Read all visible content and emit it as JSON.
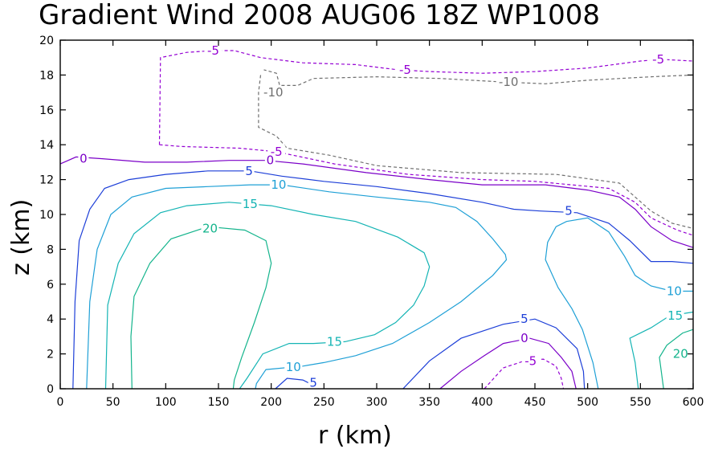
{
  "chart_data": {
    "type": "contour",
    "title": "Gradient Wind 2008 AUG06 18Z  WP1008",
    "xlabel": "r (km)",
    "ylabel": "z (km)",
    "xlim": [
      0,
      600
    ],
    "ylim": [
      0,
      20
    ],
    "x_ticks": [
      "0",
      "50",
      "100",
      "150",
      "200",
      "250",
      "300",
      "350",
      "400",
      "450",
      "500",
      "550",
      "600"
    ],
    "y_ticks": [
      "0",
      "2",
      "4",
      "6",
      "8",
      "10",
      "12",
      "14",
      "16",
      "18",
      "20"
    ],
    "colors": {
      "m10": "#6f6f6f",
      "m5": "#9400d3",
      "c0": "#7b00c8",
      "c5": "#1d3fd8",
      "c10": "#1fa0d6",
      "c15": "#14b4b4",
      "c20": "#14b48c"
    },
    "contours": [
      {
        "level": -10,
        "color_key": "m10",
        "dashed": true,
        "segments": [
          [
            [
              190,
              18
            ],
            [
              188,
              17
            ],
            [
              188,
              15
            ],
            [
              205,
              14.5
            ],
            [
              215,
              13.8
            ],
            [
              255,
              13.4
            ],
            [
              300,
              12.8
            ],
            [
              380,
              12.4
            ],
            [
              470,
              12.3
            ],
            [
              530,
              11.8
            ],
            [
              560,
              10.2
            ],
            [
              580,
              9.5
            ],
            [
              600,
              9.2
            ]
          ],
          [
            [
              600,
              18
            ],
            [
              560,
              17.9
            ],
            [
              500,
              17.7
            ],
            [
              460,
              17.5
            ],
            [
              420,
              17.6
            ],
            [
              360,
              17.8
            ],
            [
              300,
              17.9
            ],
            [
              240,
              17.8
            ],
            [
              225,
              17.4
            ],
            [
              208,
              17.4
            ],
            [
              205,
              18.1
            ],
            [
              193,
              18.3
            ]
          ]
        ],
        "labels": [
          {
            "x": 202,
            "y": 17.0,
            "text": "-10"
          },
          {
            "x": 425,
            "y": 17.6,
            "text": "-10"
          }
        ]
      },
      {
        "level": -5,
        "color_key": "m5",
        "dashed": true,
        "segments": [
          [
            [
              94,
              14
            ],
            [
              95,
              19
            ],
            [
              120,
              19.3
            ],
            [
              145,
              19.4
            ],
            [
              165,
              19.4
            ],
            [
              190,
              19
            ],
            [
              230,
              18.7
            ],
            [
              280,
              18.6
            ],
            [
              320,
              18.3
            ],
            [
              350,
              18.2
            ],
            [
              400,
              18.1
            ],
            [
              450,
              18.2
            ],
            [
              500,
              18.4
            ],
            [
              550,
              18.8
            ],
            [
              570,
              18.9
            ],
            [
              600,
              18.8
            ]
          ],
          [
            [
              94,
              14
            ],
            [
              115,
              13.9
            ],
            [
              170,
              13.8
            ],
            [
              205,
              13.6
            ],
            [
              260,
              12.9
            ],
            [
              330,
              12.3
            ],
            [
              400,
              12
            ],
            [
              450,
              11.9
            ],
            [
              520,
              11.5
            ],
            [
              545,
              10.7
            ],
            [
              560,
              9.8
            ],
            [
              585,
              9.1
            ],
            [
              600,
              8.8
            ]
          ],
          [
            [
              402,
              0
            ],
            [
              420,
              1.2
            ],
            [
              440,
              1.6
            ],
            [
              458,
              1.7
            ],
            [
              470,
              1.3
            ],
            [
              475,
              0.6
            ],
            [
              477,
              0
            ]
          ]
        ],
        "labels": [
          {
            "x": 145,
            "y": 19.4,
            "text": "-5"
          },
          {
            "x": 327,
            "y": 18.3,
            "text": "-5"
          },
          {
            "x": 567,
            "y": 18.9,
            "text": "-5"
          },
          {
            "x": 205,
            "y": 13.6,
            "text": "-5"
          },
          {
            "x": 446,
            "y": 1.6,
            "text": "-5"
          }
        ]
      },
      {
        "level": 0,
        "color_key": "c0",
        "dashed": false,
        "segments": [
          [
            [
              0,
              12.9
            ],
            [
              15,
              13.3
            ],
            [
              40,
              13.2
            ],
            [
              80,
              13
            ],
            [
              120,
              13
            ],
            [
              160,
              13.1
            ],
            [
              195,
              13.1
            ],
            [
              230,
              12.9
            ],
            [
              290,
              12.4
            ],
            [
              350,
              12.0
            ],
            [
              400,
              11.7
            ],
            [
              460,
              11.7
            ],
            [
              500,
              11.4
            ],
            [
              530,
              11
            ],
            [
              545,
              10.3
            ],
            [
              560,
              9.3
            ],
            [
              580,
              8.5
            ],
            [
              600,
              8.1
            ]
          ],
          [
            [
              360,
              0
            ],
            [
              380,
              1
            ],
            [
              402,
              1.9
            ],
            [
              420,
              2.6
            ],
            [
              445,
              2.9
            ],
            [
              463,
              2.6
            ],
            [
              475,
              1.8
            ],
            [
              485,
              1
            ],
            [
              489,
              0
            ]
          ]
        ],
        "labels": [
          {
            "x": 22,
            "y": 13.2,
            "text": "0"
          },
          {
            "x": 199,
            "y": 13.1,
            "text": "0"
          },
          {
            "x": 440,
            "y": 2.9,
            "text": "0"
          }
        ]
      },
      {
        "level": 5,
        "color_key": "c5",
        "dashed": false,
        "segments": [
          [
            [
              12,
              0
            ],
            [
              14,
              5
            ],
            [
              18,
              8.5
            ],
            [
              28,
              10.3
            ],
            [
              42,
              11.5
            ],
            [
              65,
              12
            ],
            [
              100,
              12.3
            ],
            [
              140,
              12.5
            ],
            [
              180,
              12.5
            ],
            [
              210,
              12.2
            ],
            [
              250,
              11.9
            ],
            [
              300,
              11.6
            ],
            [
              350,
              11.2
            ],
            [
              400,
              10.7
            ],
            [
              430,
              10.3
            ],
            [
              455,
              10.2
            ],
            [
              490,
              10.1
            ],
            [
              520,
              9.5
            ],
            [
              540,
              8.5
            ],
            [
              560,
              7.3
            ],
            [
              580,
              7.3
            ],
            [
              600,
              7.2
            ]
          ],
          [
            [
              204,
              0
            ],
            [
              215,
              0.6
            ],
            [
              230,
              0.5
            ],
            [
              240,
              0.2
            ],
            [
              245,
              0
            ]
          ],
          [
            [
              325,
              0
            ],
            [
              350,
              1.6
            ],
            [
              380,
              2.9
            ],
            [
              420,
              3.7
            ],
            [
              450,
              4
            ],
            [
              470,
              3.5
            ],
            [
              490,
              2.3
            ],
            [
              496,
              1
            ],
            [
              497,
              0
            ]
          ]
        ],
        "labels": [
          {
            "x": 179,
            "y": 12.5,
            "text": "5"
          },
          {
            "x": 482,
            "y": 10.2,
            "text": "5"
          },
          {
            "x": 240,
            "y": 0.35,
            "text": "5"
          },
          {
            "x": 440,
            "y": 4.0,
            "text": "5"
          }
        ]
      },
      {
        "level": 10,
        "color_key": "c10",
        "dashed": false,
        "segments": [
          [
            [
              25,
              0
            ],
            [
              28,
              5
            ],
            [
              35,
              8
            ],
            [
              48,
              10
            ],
            [
              68,
              11.0
            ],
            [
              100,
              11.5
            ],
            [
              140,
              11.6
            ],
            [
              180,
              11.7
            ],
            [
              210,
              11.7
            ],
            [
              255,
              11.3
            ],
            [
              300,
              11
            ],
            [
              350,
              10.7
            ],
            [
              375,
              10.4
            ],
            [
              395,
              9.6
            ],
            [
              410,
              8.6
            ],
            [
              422,
              7.7
            ],
            [
              423,
              7.4
            ],
            [
              410,
              6.5
            ],
            [
              380,
              5
            ],
            [
              350,
              3.8
            ],
            [
              315,
              2.6
            ],
            [
              280,
              1.9
            ],
            [
              250,
              1.5
            ],
            [
              230,
              1.3
            ],
            [
              195,
              1.1
            ],
            [
              186,
              0.3
            ],
            [
              185,
              0
            ]
          ],
          [
            [
              510,
              0
            ],
            [
              505,
              1.5
            ],
            [
              495,
              3.4
            ],
            [
              485,
              4.6
            ],
            [
              472,
              5.8
            ],
            [
              460,
              7.4
            ],
            [
              462,
              8.4
            ],
            [
              470,
              9.3
            ],
            [
              480,
              9.6
            ],
            [
              500,
              9.8
            ],
            [
              520,
              9
            ],
            [
              535,
              7.6
            ],
            [
              545,
              6.5
            ],
            [
              560,
              5.9
            ],
            [
              580,
              5.6
            ],
            [
              600,
              5.6
            ]
          ]
        ],
        "labels": [
          {
            "x": 207,
            "y": 11.7,
            "text": "10"
          },
          {
            "x": 221,
            "y": 1.25,
            "text": "10"
          },
          {
            "x": 582,
            "y": 5.6,
            "text": "10"
          }
        ]
      },
      {
        "level": 15,
        "color_key": "c15",
        "dashed": false,
        "segments": [
          [
            [
              43,
              0
            ],
            [
              45,
              4.8
            ],
            [
              55,
              7.2
            ],
            [
              70,
              8.9
            ],
            [
              95,
              10.1
            ],
            [
              120,
              10.5
            ],
            [
              160,
              10.7
            ],
            [
              200,
              10.5
            ],
            [
              240,
              10
            ],
            [
              280,
              9.6
            ],
            [
              320,
              8.7
            ],
            [
              345,
              7.8
            ],
            [
              350,
              7
            ],
            [
              345,
              5.9
            ],
            [
              335,
              4.8
            ],
            [
              318,
              3.8
            ],
            [
              298,
              3.1
            ],
            [
              270,
              2.7
            ],
            [
              240,
              2.6
            ],
            [
              217,
              2.6
            ],
            [
              192,
              2
            ],
            [
              177,
              0.6
            ],
            [
              170,
              0
            ]
          ],
          [
            [
              548,
              0
            ],
            [
              545,
              1.5
            ],
            [
              540,
              2.9
            ],
            [
              560,
              3.5
            ],
            [
              578,
              4.2
            ],
            [
              600,
              4.4
            ]
          ]
        ],
        "labels": [
          {
            "x": 180,
            "y": 10.6,
            "text": "15"
          },
          {
            "x": 260,
            "y": 2.7,
            "text": "15"
          },
          {
            "x": 583,
            "y": 4.2,
            "text": "15"
          }
        ]
      },
      {
        "level": 20,
        "color_key": "c20",
        "dashed": false,
        "segments": [
          [
            [
              68,
              0
            ],
            [
              67,
              3
            ],
            [
              70,
              5.3
            ],
            [
              85,
              7.2
            ],
            [
              105,
              8.6
            ],
            [
              140,
              9.3
            ],
            [
              175,
              9.1
            ],
            [
              195,
              8.5
            ],
            [
              200,
              7.2
            ],
            [
              195,
              5.8
            ],
            [
              184,
              3.8
            ],
            [
              172,
              1.8
            ],
            [
              165,
              0.5
            ],
            [
              164,
              0
            ]
          ],
          [
            [
              572,
              0
            ],
            [
              568,
              1.8
            ],
            [
              575,
              2.5
            ],
            [
              590,
              3.2
            ],
            [
              600,
              3.4
            ]
          ]
        ],
        "labels": [
          {
            "x": 142,
            "y": 9.2,
            "text": "20"
          },
          {
            "x": 588,
            "y": 2.0,
            "text": "20"
          }
        ]
      }
    ]
  }
}
